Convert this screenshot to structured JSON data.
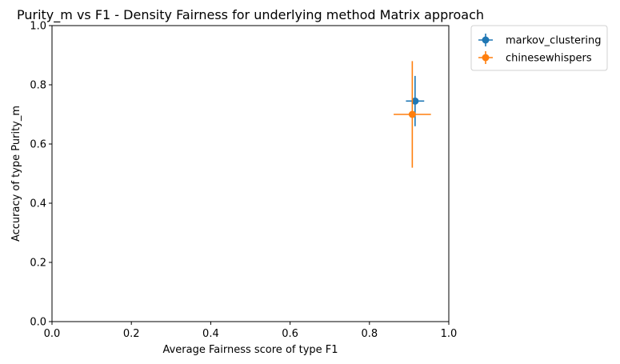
{
  "chart_data": {
    "type": "scatter",
    "title": "Purity_m vs F1 - Density Fairness for underlying method Matrix approach",
    "xlabel": "Average Fairness score of type F1",
    "ylabel": "Accuracy of type Purity_m",
    "xlim": [
      0.0,
      1.0
    ],
    "ylim": [
      0.0,
      1.0
    ],
    "xticks": [
      "0.0",
      "0.2",
      "0.4",
      "0.6",
      "0.8",
      "1.0"
    ],
    "yticks": [
      "0.0",
      "0.2",
      "0.4",
      "0.6",
      "0.8",
      "1.0"
    ],
    "grid": false,
    "legend_position": "outside-upper-right",
    "series": [
      {
        "name": "markov_clustering",
        "color": "#1f77b4",
        "x": 0.915,
        "y": 0.745,
        "xerr": 0.023,
        "yerr": 0.085
      },
      {
        "name": "chinesewhispers",
        "color": "#ff7f0e",
        "x": 0.908,
        "y": 0.7,
        "xerr": 0.047,
        "yerr": 0.18
      }
    ]
  }
}
